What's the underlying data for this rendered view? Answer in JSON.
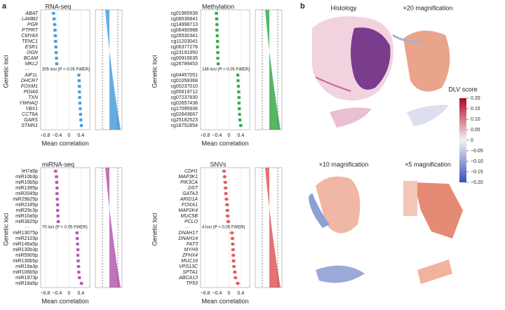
{
  "panel_labels": [
    "a",
    "b"
  ],
  "chart_data": [
    {
      "type": "forest",
      "title": "RNA-seq",
      "xlabel": "Mean correlation",
      "ylabel": "Genetic loci",
      "color": "#4a9fdc",
      "italic": true,
      "annotation": "305 loci (P < 0.05 FWER)",
      "categories": [
        "ABAT",
        "LAMB2",
        "PGR",
        "PTPRT",
        "CMYA5",
        "TENC1",
        "ESR1",
        "OGN",
        "BCAM",
        "MKL2",
        "AIF1L",
        "DHCR7",
        "FOXM1",
        "PDIA6",
        "TXN",
        "YWHAQ",
        "YBX1",
        "CCT6A",
        "GARS",
        "STMN1"
      ],
      "values": [
        -0.52,
        -0.5,
        -0.48,
        -0.47,
        -0.46,
        -0.45,
        -0.44,
        -0.43,
        -0.42,
        -0.41,
        0.33,
        0.34,
        0.35,
        0.35,
        0.36,
        0.37,
        0.38,
        0.39,
        0.4,
        0.42
      ],
      "errors": [
        0.08,
        0.07,
        0.07,
        0.08,
        0.07,
        0.07,
        0.06,
        0.07,
        0.06,
        0.07,
        0.06,
        0.06,
        0.06,
        0.05,
        0.06,
        0.06,
        0.05,
        0.06,
        0.06,
        0.06
      ],
      "xlim": [
        -0.95,
        0.7
      ],
      "xticks": [
        {
          "value": -0.8,
          "label": "−0.8"
        },
        {
          "value": -0.4,
          "label": "−0.4"
        },
        0,
        {
          "value": 0.4,
          "label": "0.4"
        }
      ]
    },
    {
      "type": "forest",
      "title": "Methylation",
      "xlabel": "Mean correlation",
      "ylabel": "Genetic loci",
      "color": "#3aaa4a",
      "italic": false,
      "annotation": "146 loci (P < 0.05 FWER)",
      "categories": [
        "cg01965939",
        "cg08536841",
        "cg14998713",
        "cg06490988",
        "cg26530341",
        "cg11203041",
        "cg06377278",
        "cg23191950",
        "cg00916635",
        "cg26789453",
        "cg04457051",
        "cg01058368",
        "cg00237010",
        "cg05619712",
        "cg07237830",
        "cg02657438",
        "cg17095936",
        "cg02643667",
        "cg25182523",
        "cg18752854"
      ],
      "values": [
        -0.42,
        -0.41,
        -0.4,
        -0.4,
        -0.39,
        -0.38,
        -0.38,
        -0.37,
        -0.37,
        -0.36,
        0.3,
        0.31,
        0.32,
        0.33,
        0.34,
        0.34,
        0.35,
        0.36,
        0.37,
        0.4
      ],
      "errors": [
        0.07,
        0.07,
        0.06,
        0.07,
        0.06,
        0.06,
        0.06,
        0.06,
        0.06,
        0.06,
        0.06,
        0.06,
        0.05,
        0.06,
        0.06,
        0.05,
        0.06,
        0.05,
        0.06,
        0.06
      ],
      "xlim": [
        -0.95,
        0.7
      ],
      "xticks": [
        {
          "value": -0.8,
          "label": "−0.8"
        },
        {
          "value": -0.4,
          "label": "−0.4"
        },
        0,
        {
          "value": 0.4,
          "label": "0.4"
        }
      ]
    },
    {
      "type": "forest",
      "title": "miRNA-seq",
      "xlabel": "Mean correlation",
      "ylabel": "Genetic loci",
      "color": "#b45bb0",
      "italic": false,
      "annotation": "70 loci (P < 0.05 FWER)",
      "categories": [
        "let7a5p",
        "miR10b3p",
        "miR10b5p",
        "miR1395p",
        "miR2045p",
        "miR29b25p",
        "miR2185p",
        "miR29c3p",
        "miR10a5p",
        "miR3825p",
        "miR13075p",
        "miR2103p",
        "miR146a5p",
        "miR130b3p",
        "miR5905p",
        "miR130b5p",
        "miR19a3p",
        "miR106b5p",
        "miR1973p",
        "miR18a5p"
      ],
      "values": [
        -0.45,
        -0.42,
        -0.41,
        -0.4,
        -0.4,
        -0.39,
        -0.38,
        -0.38,
        -0.37,
        -0.36,
        0.27,
        0.28,
        0.29,
        0.3,
        0.3,
        0.31,
        0.32,
        0.33,
        0.35,
        0.42
      ],
      "errors": [
        0.07,
        0.07,
        0.07,
        0.06,
        0.07,
        0.06,
        0.07,
        0.06,
        0.06,
        0.07,
        0.06,
        0.06,
        0.06,
        0.06,
        0.05,
        0.06,
        0.06,
        0.06,
        0.06,
        0.07
      ],
      "xlim": [
        -0.95,
        0.7
      ],
      "xticks": [
        {
          "value": -0.8,
          "label": "−0.8"
        },
        {
          "value": -0.4,
          "label": "−0.4"
        },
        0,
        {
          "value": 0.4,
          "label": "0.4"
        }
      ]
    },
    {
      "type": "forest",
      "title": "SNVs",
      "xlabel": "Mean correlation",
      "ylabel": "Genetic loci",
      "color": "#e05a5a",
      "italic": true,
      "annotation": "4 loci (P < 0.05 FWER)",
      "categories": [
        "CDH1",
        "MAP3K1",
        "PIK3CA",
        "DST",
        "GATA3",
        "ARID1A",
        "FOXA1",
        "MAP2K4",
        "MUC5B",
        "PCLO",
        "DNAH17",
        "DNAH14",
        "FAT3",
        "MYH9",
        "ZFHX4",
        "MUC16",
        "VPS13C",
        "SPTA1",
        "ABCA13",
        "TP53"
      ],
      "values": [
        -0.16,
        -0.14,
        -0.12,
        -0.11,
        -0.1,
        -0.08,
        -0.06,
        -0.05,
        -0.04,
        -0.02,
        0.1,
        0.12,
        0.13,
        0.14,
        0.15,
        0.16,
        0.17,
        0.2,
        0.22,
        0.3
      ],
      "errors": [
        0.08,
        0.08,
        0.09,
        0.08,
        0.08,
        0.09,
        0.08,
        0.08,
        0.09,
        0.08,
        0.09,
        0.08,
        0.08,
        0.09,
        0.08,
        0.08,
        0.09,
        0.08,
        0.08,
        0.09
      ],
      "xlim": [
        -0.95,
        0.7
      ],
      "xticks": [
        {
          "value": -0.8,
          "label": "−0.8"
        },
        {
          "value": -0.4,
          "label": "−0.4"
        },
        0,
        {
          "value": 0.4,
          "label": "0.4"
        }
      ]
    }
  ],
  "images": {
    "titles": [
      "Histology",
      "×20 magnification",
      "×10 magnification",
      "×5 magnification"
    ]
  },
  "colorbar": {
    "title": "DLV score",
    "lim": [
      -0.2,
      0.2
    ],
    "ticks": [
      {
        "value": 0.2,
        "label": "0.20"
      },
      {
        "value": 0.15,
        "label": "0.15"
      },
      {
        "value": 0.1,
        "label": "0.10"
      },
      {
        "value": 0.05,
        "label": "0.05"
      },
      0,
      {
        "value": -0.05,
        "label": "−0.05"
      },
      {
        "value": -0.1,
        "label": "−0.10"
      },
      {
        "value": -0.15,
        "label": "−0.15"
      },
      {
        "value": -0.2,
        "label": "−0.20"
      }
    ]
  }
}
